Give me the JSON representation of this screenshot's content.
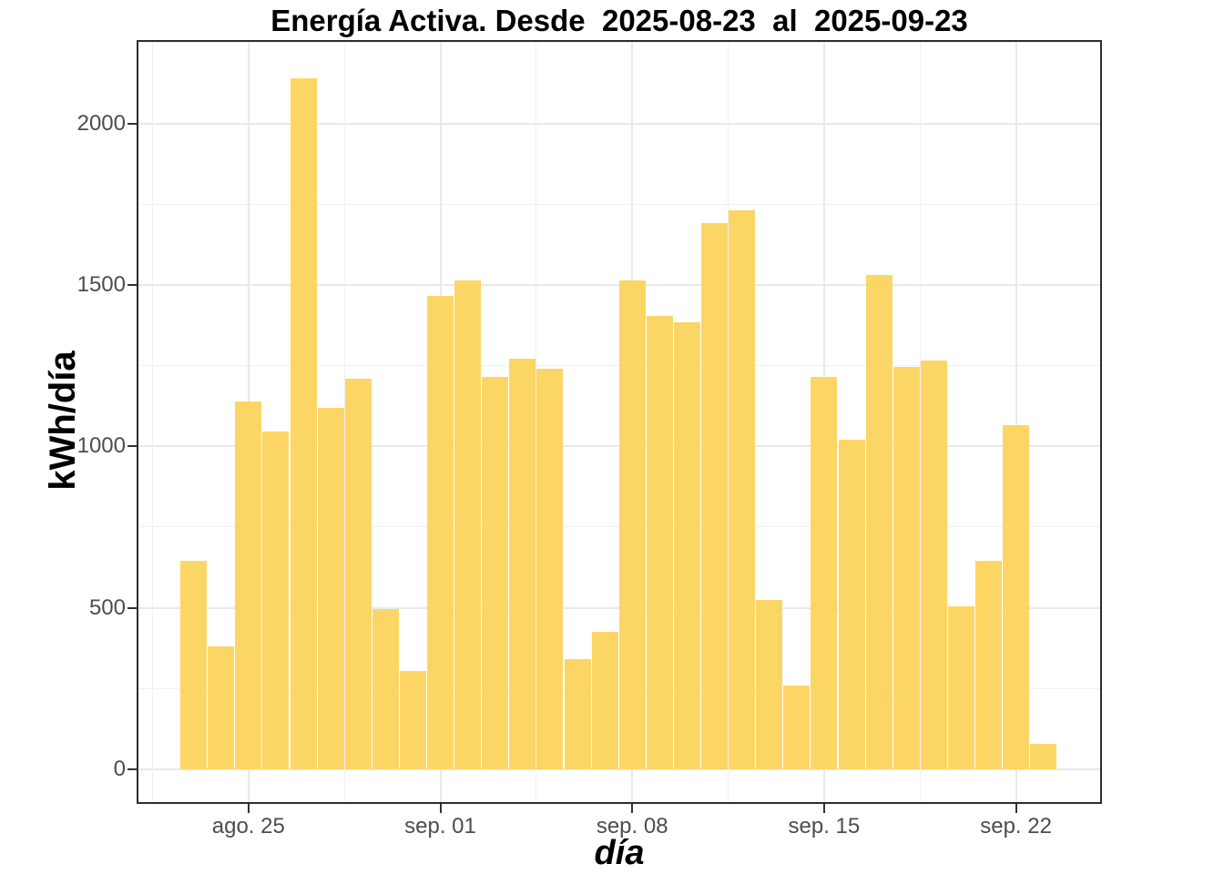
{
  "title": "Energía Activa. Desde  2025-08-23  al  2025-09-23",
  "colors": {
    "bar_fill": "#fcd665",
    "grid_major": "#e9e9e9",
    "grid_minor": "#f0f0f0",
    "panel_border": "#2d2d2d",
    "tick_mark": "#333333",
    "tick_label": "#4d4d4d",
    "title_text": "#000000"
  },
  "chart_data": {
    "type": "bar",
    "title": "Energía Activa. Desde  2025-08-23  al  2025-09-23",
    "xlabel": "día",
    "ylabel": "kWh/día",
    "legend_position": "none",
    "grid": "major and minor, light gray on white panel with dark border",
    "ylim": [
      0,
      2263
    ],
    "y_ticks": [
      0,
      500,
      1000,
      1500,
      2000
    ],
    "y_minor_ticks": [
      250,
      750,
      1250,
      1750,
      2250
    ],
    "x_tick_labels": [
      "ago. 25",
      "sep. 01",
      "sep. 08",
      "sep. 15",
      "sep. 22"
    ],
    "x_tick_day_indices": [
      2,
      9,
      16,
      23,
      30
    ],
    "x_minor_day_indices": [
      -1.5,
      5.5,
      12.5,
      19.5,
      26.5
    ],
    "categories": [
      "2025-08-23",
      "2025-08-24",
      "2025-08-25",
      "2025-08-26",
      "2025-08-27",
      "2025-08-28",
      "2025-08-29",
      "2025-08-30",
      "2025-08-31",
      "2025-09-01",
      "2025-09-02",
      "2025-09-03",
      "2025-09-04",
      "2025-09-05",
      "2025-09-06",
      "2025-09-07",
      "2025-09-08",
      "2025-09-09",
      "2025-09-10",
      "2025-09-11",
      "2025-09-12",
      "2025-09-13",
      "2025-09-14",
      "2025-09-15",
      "2025-09-16",
      "2025-09-17",
      "2025-09-18",
      "2025-09-19",
      "2025-09-20",
      "2025-09-21",
      "2025-09-22",
      "2025-09-23"
    ],
    "values": [
      645,
      380,
      1140,
      1045,
      2140,
      1120,
      1210,
      495,
      305,
      1465,
      1515,
      1215,
      1270,
      1240,
      340,
      425,
      1515,
      1405,
      1385,
      1690,
      1730,
      525,
      260,
      1215,
      1020,
      1530,
      1245,
      1265,
      505,
      645,
      1065,
      80
    ]
  }
}
